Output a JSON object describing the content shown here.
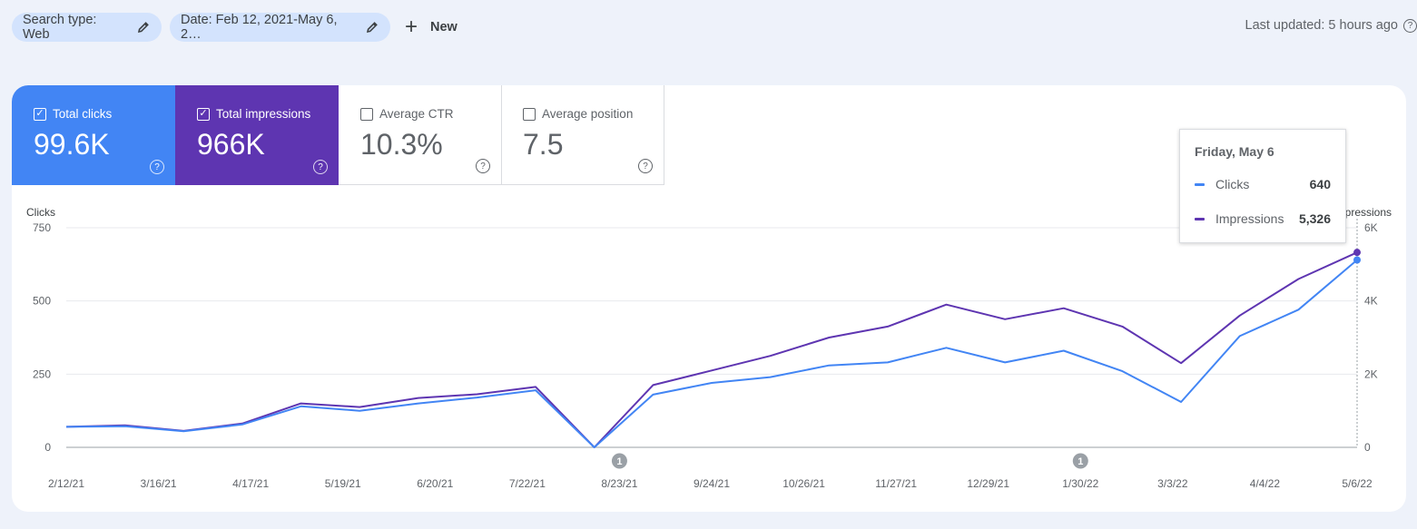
{
  "filters": {
    "search_type": "Search type: Web",
    "date": "Date: Feb 12, 2021-May 6, 2…",
    "new_label": "New"
  },
  "last_updated": "Last updated: 5 hours ago",
  "metrics": {
    "clicks": {
      "label": "Total clicks",
      "value": "99.6K",
      "checked": true
    },
    "impressions": {
      "label": "Total impressions",
      "value": "966K",
      "checked": true
    },
    "ctr": {
      "label": "Average CTR",
      "value": "10.3%",
      "checked": false
    },
    "position": {
      "label": "Average position",
      "value": "7.5",
      "checked": false
    }
  },
  "tooltip": {
    "date": "Friday, May 6",
    "rows": [
      {
        "name": "Clicks",
        "value": "640"
      },
      {
        "name": "Impressions",
        "value": "5,326"
      }
    ]
  },
  "colors": {
    "clicks": "#4285f4",
    "impressions": "#5e35b1",
    "grid": "#e8eaed",
    "annotation": "#9aa0a6"
  },
  "chart_data": {
    "type": "line",
    "y_left": {
      "label": "Clicks",
      "ticks": [
        "750",
        "500",
        "250",
        "0"
      ],
      "range": [
        0,
        750
      ]
    },
    "y_right": {
      "label": "Impressions",
      "ticks": [
        "6K",
        "4K",
        "2K",
        "0"
      ],
      "range": [
        0,
        6000
      ]
    },
    "x_ticks": [
      "2/12/21",
      "3/16/21",
      "4/17/21",
      "5/19/21",
      "6/20/21",
      "7/22/21",
      "8/23/21",
      "9/24/21",
      "10/26/21",
      "11/27/21",
      "12/29/21",
      "1/30/22",
      "3/3/22",
      "4/4/22",
      "5/6/22"
    ],
    "series": [
      {
        "name": "Clicks",
        "axis": "left",
        "values": [
          70,
          72,
          55,
          78,
          140,
          125,
          150,
          170,
          195,
          0,
          180,
          220,
          240,
          280,
          290,
          340,
          290,
          330,
          260,
          155,
          380,
          470,
          640
        ]
      },
      {
        "name": "Impressions",
        "axis": "right",
        "values": [
          560,
          600,
          450,
          650,
          1200,
          1100,
          1350,
          1450,
          1650,
          0,
          1700,
          2100,
          2500,
          3000,
          3300,
          3900,
          3500,
          3800,
          3300,
          2300,
          3600,
          4600,
          5326
        ]
      }
    ],
    "annotations": [
      {
        "x": "8/23/21",
        "label": "1"
      },
      {
        "x": "1/30/22",
        "label": "1"
      }
    ]
  }
}
